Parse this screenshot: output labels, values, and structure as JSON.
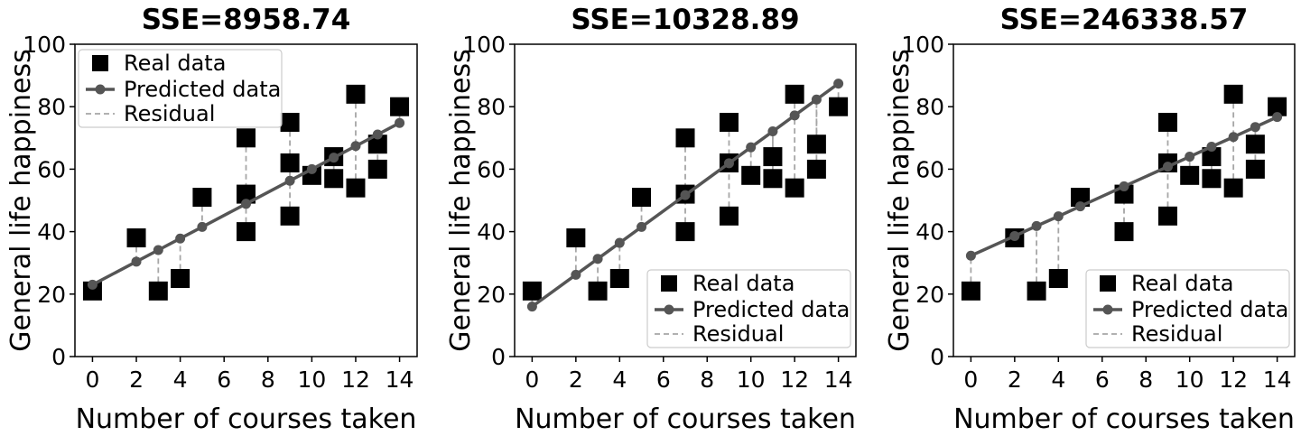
{
  "chart_data": [
    {
      "type": "scatter",
      "title": "SSE=8958.74",
      "xlabel": "Number of courses taken",
      "ylabel": "General life happiness",
      "xlim": [
        -0.8,
        14.8
      ],
      "ylim": [
        0,
        100
      ],
      "xticks": [
        0,
        2,
        4,
        6,
        8,
        10,
        12,
        14
      ],
      "yticks": [
        0,
        20,
        40,
        60,
        80,
        100
      ],
      "legend_position": "upper-left",
      "series": [
        {
          "name": "Real data",
          "x": [
            0,
            2,
            3,
            4,
            5,
            7,
            7,
            7,
            9,
            9,
            9,
            10,
            11,
            11,
            12,
            12,
            13,
            13,
            14
          ],
          "y": [
            21,
            38,
            21,
            25,
            51,
            70,
            52,
            40,
            75,
            62,
            45,
            58,
            64,
            57,
            84,
            54,
            68,
            60,
            80
          ]
        },
        {
          "name": "Predicted data",
          "x": [
            0,
            2,
            3,
            4,
            5,
            7,
            9,
            10,
            11,
            12,
            13,
            14
          ],
          "y": [
            23,
            30.4,
            34.1,
            37.8,
            41.5,
            48.9,
            56.3,
            60,
            63.7,
            67.4,
            71.1,
            74.8
          ]
        },
        {
          "name": "Residual"
        }
      ]
    },
    {
      "type": "scatter",
      "title": "SSE=10328.89",
      "xlabel": "Number of courses taken",
      "ylabel": "General life happiness",
      "xlim": [
        -0.8,
        14.8
      ],
      "ylim": [
        0,
        100
      ],
      "xticks": [
        0,
        2,
        4,
        6,
        8,
        10,
        12,
        14
      ],
      "yticks": [
        0,
        20,
        40,
        60,
        80,
        100
      ],
      "legend_position": "lower-right",
      "series": [
        {
          "name": "Real data",
          "x": [
            0,
            2,
            3,
            4,
            5,
            7,
            7,
            7,
            9,
            9,
            9,
            10,
            11,
            11,
            12,
            12,
            13,
            13,
            14
          ],
          "y": [
            21,
            38,
            21,
            25,
            51,
            70,
            52,
            40,
            75,
            62,
            45,
            58,
            64,
            57,
            84,
            54,
            68,
            60,
            80
          ]
        },
        {
          "name": "Predicted data",
          "x": [
            0,
            2,
            3,
            4,
            5,
            7,
            9,
            10,
            11,
            12,
            13,
            14
          ],
          "y": [
            16,
            26.2,
            31.3,
            36.4,
            41.5,
            51.7,
            61.9,
            67,
            72.1,
            77.2,
            82.3,
            87.4
          ]
        },
        {
          "name": "Residual"
        }
      ]
    },
    {
      "type": "scatter",
      "title": "SSE=246338.57",
      "xlabel": "Number of courses taken",
      "ylabel": "General life happiness",
      "xlim": [
        -0.8,
        14.8
      ],
      "ylim": [
        0,
        100
      ],
      "xticks": [
        0,
        2,
        4,
        6,
        8,
        10,
        12,
        14
      ],
      "yticks": [
        0,
        20,
        40,
        60,
        80,
        100
      ],
      "legend_position": "lower-right",
      "series": [
        {
          "name": "Real data",
          "x": [
            0,
            2,
            3,
            4,
            5,
            7,
            7,
            9,
            9,
            9,
            10,
            11,
            11,
            12,
            12,
            13,
            13,
            14
          ],
          "y": [
            21,
            38,
            21,
            25,
            51,
            52,
            40,
            75,
            62,
            45,
            58,
            64,
            57,
            84,
            54,
            68,
            60,
            80
          ]
        },
        {
          "name": "Predicted data",
          "x": [
            0,
            2,
            3,
            4,
            5,
            7,
            9,
            10,
            11,
            12,
            13,
            14
          ],
          "y": [
            32.3,
            38.6,
            41.8,
            44.9,
            48.1,
            54.5,
            60.8,
            64,
            67.2,
            70.3,
            73.5,
            76.7
          ]
        },
        {
          "name": "Residual"
        }
      ]
    }
  ],
  "colors": {
    "real": "#000000",
    "predicted": "#555555",
    "residual": "#a6a6a6",
    "legend_border": "#cccccc"
  }
}
